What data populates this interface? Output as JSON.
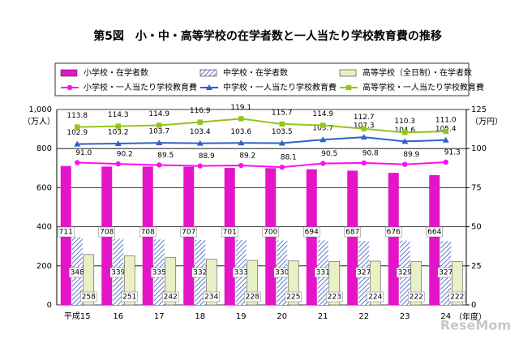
{
  "chart_data": {
    "type": "bar",
    "title": "第5図　小・中・高等学校の在学者数と一人当たり学校教育費の推移",
    "y_label": "（万人）",
    "y2_label": "（万円）",
    "x_label": "（年度）",
    "watermark": "ReseMom",
    "categories": [
      "平成15",
      "16",
      "17",
      "18",
      "19",
      "20",
      "21",
      "22",
      "23",
      "24"
    ],
    "ylim": [
      0,
      1000
    ],
    "yticks": [
      0,
      200,
      400,
      600,
      800,
      {
        "value": 1000,
        "label": "1,000"
      }
    ],
    "y2lim": [
      0,
      125
    ],
    "y2ticks": [
      0,
      25,
      50,
      75,
      100,
      125
    ],
    "grid": true,
    "series": [
      {
        "name": "小学校・在学者数",
        "color": "#e414c8",
        "fill": "solid",
        "values": [
          711,
          708,
          708,
          707,
          701,
          700,
          694,
          687,
          676,
          664
        ]
      },
      {
        "name": "中学校・在学者数",
        "color": "#5a78c8",
        "fill": "hatch",
        "values": [
          348,
          339,
          335,
          332,
          333,
          330,
          331,
          327,
          329,
          327
        ]
      },
      {
        "name": "高等学校（全日制）・在学者数",
        "color": "#e8f0c4",
        "fill": "solid",
        "values": [
          258,
          251,
          242,
          234,
          228,
          225,
          223,
          224,
          222,
          222
        ]
      },
      {
        "name": "小学校・一人当たり学校教育費",
        "color": "#ff10f0",
        "axis": "y2",
        "marker": "circle",
        "values": [
          91.0,
          90.2,
          89.5,
          88.9,
          89.2,
          88.1,
          90.5,
          90.8,
          89.9,
          91.3
        ],
        "value_labels": [
          "91.0",
          "90.2",
          "89.5",
          "88.9",
          "89.2",
          "88.1",
          "90.5",
          "90.8",
          "89.9",
          "91.3"
        ]
      },
      {
        "name": "中学校・一人当たり学校教育費",
        "color": "#2e62c8",
        "axis": "y2",
        "marker": "triangle",
        "values": [
          102.9,
          103.2,
          103.7,
          103.4,
          103.6,
          103.5,
          105.7,
          107.3,
          104.6,
          105.4
        ],
        "value_labels": [
          "102.9",
          "103.2",
          "103.7",
          "103.4",
          "103.6",
          "103.5",
          "105.7",
          "107.3",
          "104.6",
          "105.4"
        ]
      },
      {
        "name": "高等学校・一人当たり学校教育費",
        "color": "#94c41e",
        "axis": "y2",
        "marker": "square",
        "values": [
          113.8,
          114.3,
          114.9,
          116.9,
          119.1,
          115.7,
          114.9,
          112.7,
          110.3,
          111.0
        ],
        "value_labels": [
          "113.8",
          "114.3",
          "114.9",
          "116.9",
          "119.1",
          "115.7",
          "114.9",
          "112.7",
          "110.3",
          "111.0"
        ]
      }
    ]
  }
}
